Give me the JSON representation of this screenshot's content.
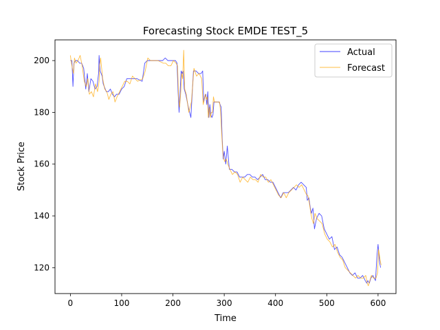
{
  "chart_data": {
    "type": "line",
    "title": "Forecasting Stock EMDE TEST_5",
    "xlabel": "Time",
    "ylabel": "Stock Price",
    "xlim": [
      -30,
      635
    ],
    "ylim": [
      110,
      208
    ],
    "xticks": [
      0,
      100,
      200,
      300,
      400,
      500,
      600
    ],
    "yticks": [
      120,
      140,
      160,
      180,
      200
    ],
    "grid": false,
    "legend_position": "upper right",
    "series": [
      {
        "name": "Actual",
        "color": "#0000ff",
        "x": [
          0,
          3,
          5,
          7,
          10,
          14,
          18,
          22,
          26,
          30,
          33,
          36,
          40,
          44,
          48,
          52,
          55,
          56,
          58,
          60,
          62,
          64,
          66,
          70,
          74,
          78,
          82,
          86,
          90,
          95,
          100,
          105,
          110,
          115,
          120,
          130,
          140,
          145,
          150,
          155,
          160,
          170,
          180,
          185,
          190,
          195,
          200,
          205,
          208,
          210,
          212,
          214,
          216,
          218,
          220,
          222,
          225,
          230,
          235,
          240,
          245,
          250,
          255,
          258,
          260,
          262,
          264,
          266,
          268,
          270,
          272,
          274,
          276,
          278,
          280,
          285,
          290,
          292,
          294,
          296,
          298,
          300,
          303,
          306,
          310,
          315,
          320,
          325,
          330,
          335,
          340,
          345,
          350,
          355,
          360,
          365,
          370,
          375,
          380,
          385,
          390,
          395,
          400,
          405,
          410,
          415,
          420,
          425,
          430,
          435,
          440,
          445,
          450,
          455,
          460,
          462,
          465,
          468,
          470,
          473,
          476,
          480,
          485,
          490,
          495,
          500,
          505,
          510,
          515,
          520,
          525,
          530,
          535,
          540,
          545,
          550,
          555,
          560,
          565,
          570,
          575,
          578,
          580,
          583,
          586,
          590,
          595,
          598,
          600,
          603,
          605
        ],
        "values": [
          200,
          200,
          190,
          199,
          200,
          200,
          199,
          199,
          197,
          189,
          195,
          188,
          193,
          192,
          189,
          190,
          195,
          202,
          196,
          195,
          194,
          191,
          190,
          188,
          188,
          189,
          187,
          186,
          187,
          187,
          189,
          190,
          193,
          193,
          193,
          193,
          192,
          199,
          200,
          200,
          200,
          200,
          200,
          201,
          200,
          200,
          200,
          200,
          199,
          188,
          180,
          188,
          196,
          195,
          196,
          189,
          187,
          182,
          178,
          196,
          196,
          195,
          195,
          196,
          184,
          186,
          187,
          183,
          188,
          178,
          183,
          179,
          178,
          179,
          184,
          184,
          184,
          183,
          182,
          170,
          162,
          165,
          160,
          167,
          158,
          158,
          157,
          157,
          155,
          155,
          155,
          156,
          156,
          155,
          155,
          154,
          155,
          156,
          154,
          154,
          153,
          153,
          151,
          149,
          147,
          149,
          149,
          149,
          150,
          151,
          150,
          152,
          153,
          152,
          151,
          146,
          147,
          143,
          141,
          143,
          135,
          139,
          141,
          140,
          135,
          133,
          131,
          132,
          127,
          128,
          125,
          124,
          122,
          120,
          118,
          117,
          118,
          116,
          116,
          117,
          115,
          114,
          115,
          114,
          116,
          117,
          115,
          125,
          129,
          122,
          120
        ]
      },
      {
        "name": "Forecast",
        "color": "#ffa500",
        "x": [
          0,
          2,
          4,
          6,
          8,
          11,
          15,
          19,
          23,
          27,
          31,
          34,
          37,
          41,
          45,
          49,
          53,
          56,
          57,
          59,
          61,
          63,
          65,
          67,
          71,
          75,
          79,
          83,
          87,
          91,
          96,
          101,
          106,
          111,
          116,
          121,
          131,
          141,
          146,
          151,
          156,
          161,
          171,
          181,
          186,
          191,
          196,
          201,
          206,
          209,
          211,
          213,
          215,
          217,
          219,
          221,
          223,
          226,
          231,
          236,
          241,
          246,
          251,
          256,
          259,
          261,
          263,
          265,
          267,
          269,
          271,
          273,
          275,
          277,
          279,
          281,
          286,
          291,
          293,
          295,
          297,
          299,
          301,
          304,
          307,
          311,
          316,
          321,
          326,
          331,
          336,
          341,
          346,
          351,
          356,
          361,
          366,
          371,
          376,
          381,
          386,
          391,
          396,
          401,
          406,
          411,
          416,
          421,
          426,
          431,
          436,
          441,
          446,
          451,
          456,
          461,
          463,
          466,
          469,
          471,
          474,
          477,
          481,
          486,
          491,
          496,
          501,
          506,
          511,
          516,
          521,
          526,
          531,
          536,
          541,
          546,
          551,
          556,
          561,
          566,
          571,
          576,
          579,
          581,
          584,
          587,
          591,
          596,
          599,
          601,
          604,
          606
        ],
        "values": [
          202,
          199,
          197,
          195,
          201,
          199,
          200,
          202,
          198,
          192,
          190,
          193,
          187,
          188,
          186,
          191,
          188,
          192,
          198,
          201,
          197,
          193,
          191,
          189,
          188,
          185,
          187,
          188,
          184,
          186,
          188,
          190,
          192,
          192,
          191,
          194,
          192,
          193,
          196,
          201,
          200,
          200,
          200,
          199,
          199,
          198,
          198,
          200,
          199,
          198,
          186,
          182,
          187,
          195,
          193,
          204,
          189,
          187,
          180,
          184,
          197,
          194,
          195,
          193,
          183,
          185,
          187,
          185,
          186,
          178,
          182,
          178,
          180,
          180,
          186,
          184,
          184,
          184,
          180,
          172,
          165,
          162,
          161,
          162,
          160,
          158,
          156,
          157,
          156,
          153,
          155,
          154,
          153,
          155,
          154,
          154,
          153,
          156,
          155,
          155,
          153,
          154,
          152,
          150,
          148,
          147,
          149,
          147,
          149,
          150,
          151,
          152,
          151,
          152,
          150,
          148,
          148,
          145,
          141,
          139,
          137,
          141,
          139,
          138,
          137,
          133,
          131,
          130,
          128,
          129,
          126,
          124,
          123,
          120,
          119,
          118,
          117,
          116,
          117,
          116,
          116,
          117,
          114,
          113,
          115,
          117,
          116,
          116,
          118,
          127,
          123,
          121
        ]
      }
    ]
  }
}
